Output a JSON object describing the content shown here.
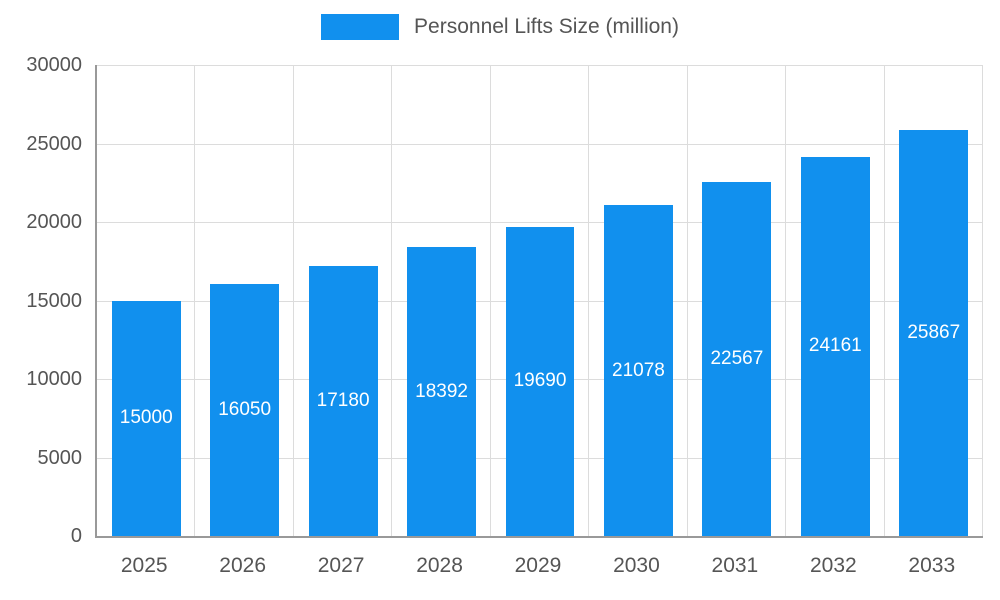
{
  "chart_data": {
    "type": "bar",
    "title": "",
    "legend": {
      "label": "Personnel Lifts Size (million)",
      "position": "top"
    },
    "categories": [
      "2025",
      "2026",
      "2027",
      "2028",
      "2029",
      "2030",
      "2031",
      "2032",
      "2033"
    ],
    "series": [
      {
        "name": "Personnel Lifts Size (million)",
        "values": [
          15000,
          16050,
          17180,
          18392,
          19690,
          21078,
          22567,
          24161,
          25867
        ]
      }
    ],
    "value_labels": [
      "15000",
      "16050",
      "17180",
      "18392",
      "19690",
      "21078",
      "22567",
      "24161",
      "25867"
    ],
    "xlabel": "",
    "ylabel": "",
    "ylim": [
      0,
      30000
    ],
    "ytick_interval": 5000,
    "yticks": [
      "0",
      "5000",
      "10000",
      "15000",
      "20000",
      "25000",
      "30000"
    ],
    "grid": true,
    "bar_color": "#1190ee",
    "value_label_color": "#ffffff",
    "axis_color": "#999999",
    "gridline_color": "#dcdcdc",
    "tick_label_color": "#555555"
  }
}
